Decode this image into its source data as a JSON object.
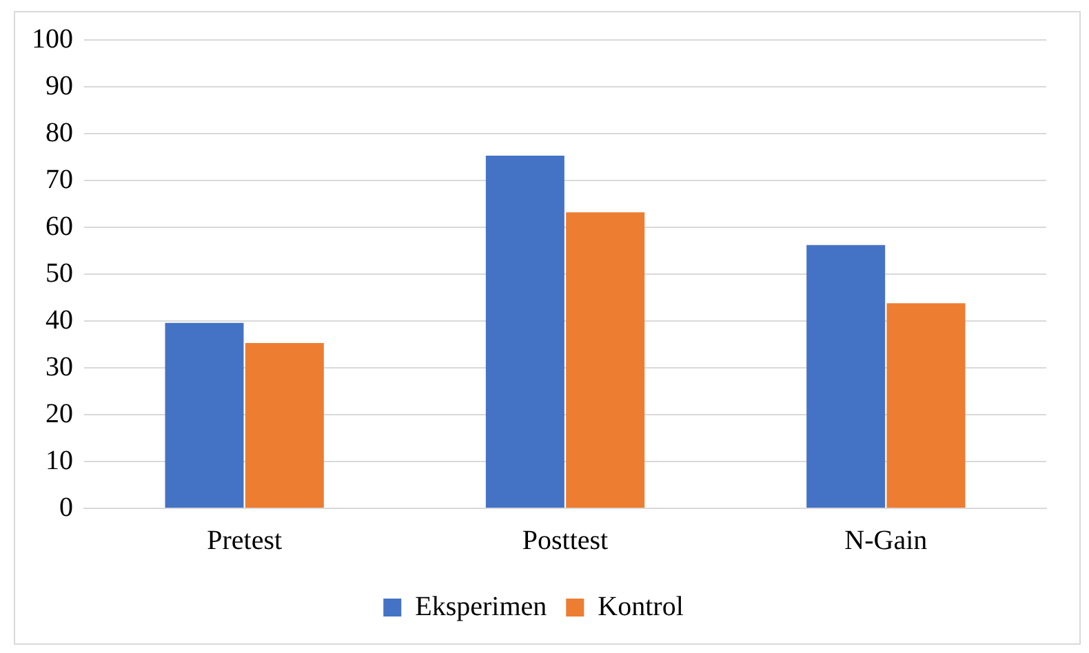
{
  "chart_data": {
    "type": "bar",
    "categories": [
      "Pretest",
      "Posttest",
      "N-Gain"
    ],
    "series": [
      {
        "name": "Eksperimen",
        "color": "#4472c4",
        "values": [
          39.6,
          75.3,
          56.2
        ]
      },
      {
        "name": "Kontrol",
        "color": "#ed7d31",
        "values": [
          35.3,
          63.2,
          43.8
        ]
      }
    ],
    "ylim": [
      0,
      100
    ],
    "yticks": [
      0,
      10,
      20,
      30,
      40,
      50,
      60,
      70,
      80,
      90,
      100
    ],
    "grid": "y",
    "legend": "bottom"
  }
}
